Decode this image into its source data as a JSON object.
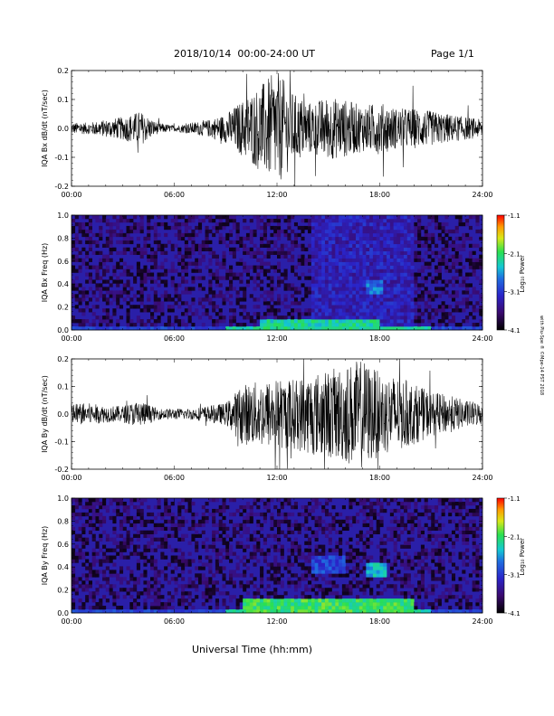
{
  "header": {
    "date_range": "2018/10/14  00:00-24:00 UT",
    "page": "Page 1/1"
  },
  "xaxis_label": "Universal Time (hh:mm)",
  "side_note": "with Plu-Spe ® ©Mpe-14 PST 2018",
  "colors": {
    "trace": "#000000",
    "spectrogram_background": "#2a1fa8",
    "colorbar": [
      "#000000",
      "#3a0a6e",
      "#2a24c8",
      "#1f6fe0",
      "#14c8d2",
      "#2ae050",
      "#d8e818",
      "#ff9a00",
      "#ff0000"
    ]
  },
  "chart_data": [
    {
      "type": "line",
      "ylabel": "IQA Bx dB/dt (nT/sec)",
      "ylim": [
        -0.2,
        0.2
      ],
      "yticks": [
        "-0.2",
        "-0.1",
        "0.0",
        "0.1",
        "0.2"
      ],
      "xticks": [
        "00:00",
        "06:00",
        "12:00",
        "18:00",
        "24:00"
      ],
      "xlim_hours": [
        0,
        24
      ],
      "series": [
        {
          "x_hours": [
            0,
            1,
            2,
            3,
            4,
            5,
            6,
            7,
            8,
            9,
            10,
            11,
            12,
            13,
            14,
            15,
            16,
            17,
            18,
            19,
            20,
            21,
            22,
            23,
            24
          ],
          "envelope": [
            0.02,
            0.02,
            0.03,
            0.04,
            0.06,
            0.02,
            0.01,
            0.02,
            0.03,
            0.05,
            0.1,
            0.15,
            0.2,
            0.12,
            0.09,
            0.11,
            0.1,
            0.08,
            0.09,
            0.07,
            0.07,
            0.06,
            0.05,
            0.04,
            0.03
          ]
        }
      ]
    },
    {
      "type": "heatmap",
      "ylabel": "IQA Bx Freq (Hz)",
      "ylim": [
        0.0,
        1.0
      ],
      "yticks": [
        "0.0",
        "0.2",
        "0.4",
        "0.6",
        "0.8",
        "1.0"
      ],
      "xticks": [
        "00:00",
        "06:00",
        "12:00",
        "18:00",
        "24:00"
      ],
      "colorbar": {
        "label": "Log₁₀ Power",
        "range": [
          -4.1,
          -1.1
        ],
        "ticks": [
          "-1.1",
          "-2.1",
          "-3.1",
          "-4.1"
        ]
      },
      "features": [
        {
          "x_hours": [
            11,
            18
          ],
          "freq_hz": [
            0.0,
            0.1
          ],
          "level": -2.3
        },
        {
          "x_hours": [
            17.3,
            18.2
          ],
          "freq_hz": [
            0.3,
            0.45
          ],
          "level": -2.8
        },
        {
          "x_hours": [
            14,
            20
          ],
          "freq_hz": [
            0.0,
            1.0
          ],
          "level": -3.3
        }
      ]
    },
    {
      "type": "line",
      "ylabel": "IQA By dB/dt (nT/sec)",
      "ylim": [
        -0.2,
        0.2
      ],
      "yticks": [
        "-0.2",
        "-0.1",
        "0.0",
        "0.1",
        "0.2"
      ],
      "xticks": [
        "00:00",
        "06:00",
        "12:00",
        "18:00",
        "24:00"
      ],
      "xlim_hours": [
        0,
        24
      ],
      "series": [
        {
          "x_hours": [
            0,
            1,
            2,
            3,
            4,
            5,
            6,
            7,
            8,
            9,
            10,
            11,
            12,
            13,
            14,
            15,
            16,
            17,
            18,
            19,
            20,
            21,
            22,
            23,
            24
          ],
          "envelope": [
            0.04,
            0.04,
            0.03,
            0.03,
            0.05,
            0.02,
            0.02,
            0.02,
            0.03,
            0.04,
            0.11,
            0.12,
            0.13,
            0.13,
            0.15,
            0.16,
            0.18,
            0.2,
            0.15,
            0.14,
            0.11,
            0.08,
            0.07,
            0.05,
            0.04
          ]
        }
      ]
    },
    {
      "type": "heatmap",
      "ylabel": "IQA By Freq (Hz)",
      "ylim": [
        0.0,
        1.0
      ],
      "yticks": [
        "0.0",
        "0.2",
        "0.4",
        "0.6",
        "0.8",
        "1.0"
      ],
      "xticks": [
        "00:00",
        "06:00",
        "12:00",
        "18:00",
        "24:00"
      ],
      "colorbar": {
        "label": "Log₁₀ Power",
        "range": [
          -4.1,
          -1.1
        ],
        "ticks": [
          "-1.1",
          "-2.1",
          "-3.1",
          "-4.1"
        ]
      },
      "features": [
        {
          "x_hours": [
            10,
            20
          ],
          "freq_hz": [
            0.0,
            0.12
          ],
          "level": -2.1
        },
        {
          "x_hours": [
            17.3,
            18.3
          ],
          "freq_hz": [
            0.3,
            0.45
          ],
          "level": -2.5
        },
        {
          "x_hours": [
            14,
            16
          ],
          "freq_hz": [
            0.35,
            0.5
          ],
          "level": -3.0
        }
      ]
    }
  ]
}
